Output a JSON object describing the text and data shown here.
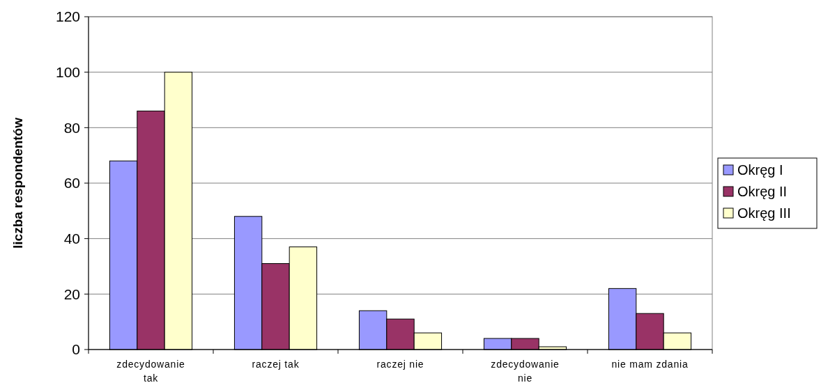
{
  "chart_data": {
    "type": "bar",
    "ylabel": "liczba respondentów",
    "categories": [
      "zdecydowanie tak",
      "raczej tak",
      "raczej nie",
      "zdecydowanie nie",
      "nie mam zdania"
    ],
    "series": [
      {
        "name": "Okręg I",
        "color": "#9999ff",
        "values": [
          68,
          48,
          14,
          4,
          22
        ]
      },
      {
        "name": "Okręg II",
        "color": "#993366",
        "values": [
          86,
          31,
          11,
          4,
          13
        ]
      },
      {
        "name": "Okręg III",
        "color": "#ffffcc",
        "values": [
          100,
          37,
          6,
          1,
          6
        ]
      }
    ],
    "ylim": [
      0,
      120
    ],
    "yticks": [
      0,
      20,
      40,
      60,
      80,
      100,
      120
    ],
    "grid": "y",
    "legend": "right"
  }
}
